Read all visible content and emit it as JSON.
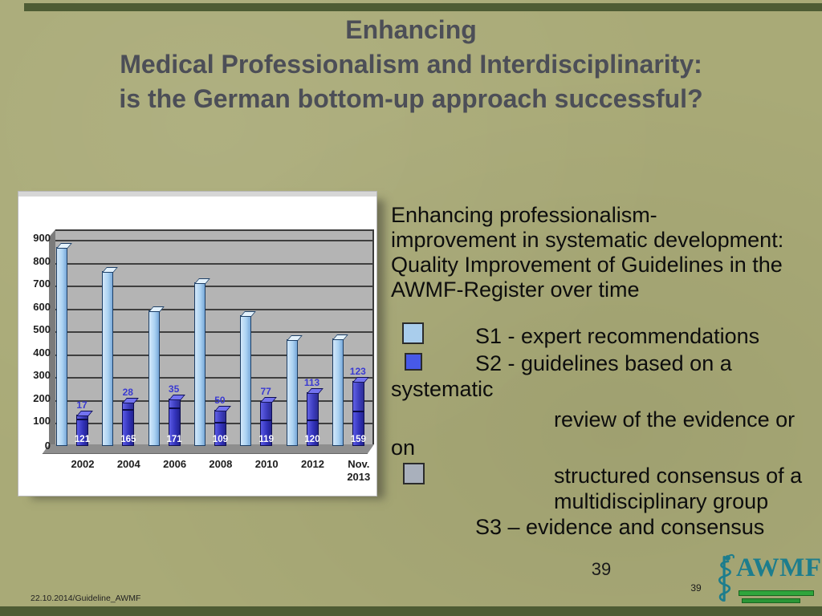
{
  "slide": {
    "title_lines": [
      "Enhancing",
      "Medical Professionalism and Interdisciplinarity:",
      "is the German bottom-up approach successful?"
    ],
    "footer_text": "22.10.2014/Guideline_AWMF",
    "page_number_large": "39",
    "page_number_small": "39"
  },
  "colors": {
    "background": "#a9aa77",
    "accent_bar_green": "#4e5c34",
    "title_text": "#4c4e57",
    "chart_light_bar": "#abd2f2",
    "chart_dark_bar": "#3333bc",
    "value_label_blue": "#3a3ad2",
    "logo_teal": "#1d7d8d",
    "logo_green": "#2fa53c"
  },
  "right_panel": {
    "intro_lines": [
      "Enhancing professionalism-",
      "improvement in systematic development:",
      "Quality Improvement of Guidelines in the",
      "AWMF-Register over time"
    ],
    "swatch_colors": {
      "s1": "#a9cdec",
      "s2": "#4759e8",
      "s3": "#a9b0bc"
    },
    "legend_rows": [
      {
        "swatch": "s1",
        "indent": "mid",
        "text": "S1 - expert recommendations"
      },
      {
        "swatch": "s2",
        "indent": "mid",
        "text": "S2 - guidelines based on a"
      },
      {
        "indent": "none",
        "text": "systematic"
      },
      {
        "indent": "big",
        "text": "review of the evidence or"
      },
      {
        "indent": "none",
        "text": "on"
      },
      {
        "swatch": "s3",
        "indent": "big",
        "text": "structured consensus of a"
      },
      {
        "indent": "big",
        "text": "multidisciplinary group"
      },
      {
        "indent": "mid",
        "text": "S3 – evidence and consensus"
      }
    ]
  },
  "logo": {
    "text": "AWMF",
    "icon": "rod-of-asclepius-icon"
  },
  "chart_data": {
    "type": "bar",
    "title": "",
    "xlabel": "",
    "ylabel": "",
    "categories": [
      "2002",
      "2004",
      "2006",
      "2008",
      "2010",
      "2012",
      "Nov.\n2013"
    ],
    "series": [
      {
        "name": "S1 - expert recommendations",
        "role": "light-blue-bar",
        "values": [
          870,
          765,
          590,
          715,
          570,
          465,
          470
        ],
        "note": "values estimated from gridlines"
      },
      {
        "name": "S2 (bottom segment of dark bar, white labels)",
        "role": "dark-blue-bar-bottom",
        "values": [
          121,
          165,
          171,
          109,
          119,
          120,
          159
        ]
      },
      {
        "name": "S3 (top segment of dark bar, blue labels above bar)",
        "role": "dark-blue-bar-top",
        "values": [
          17,
          28,
          35,
          50,
          77,
          113,
          123
        ]
      }
    ],
    "stacking": "S2 and S3 are stacked into one dark blue bar; S1 is a separate light blue bar per category",
    "ylim": [
      0,
      900
    ],
    "ytick_step": 100,
    "grid": true,
    "style": "3d-gray-walls",
    "legend_position": "right-text-panel"
  }
}
